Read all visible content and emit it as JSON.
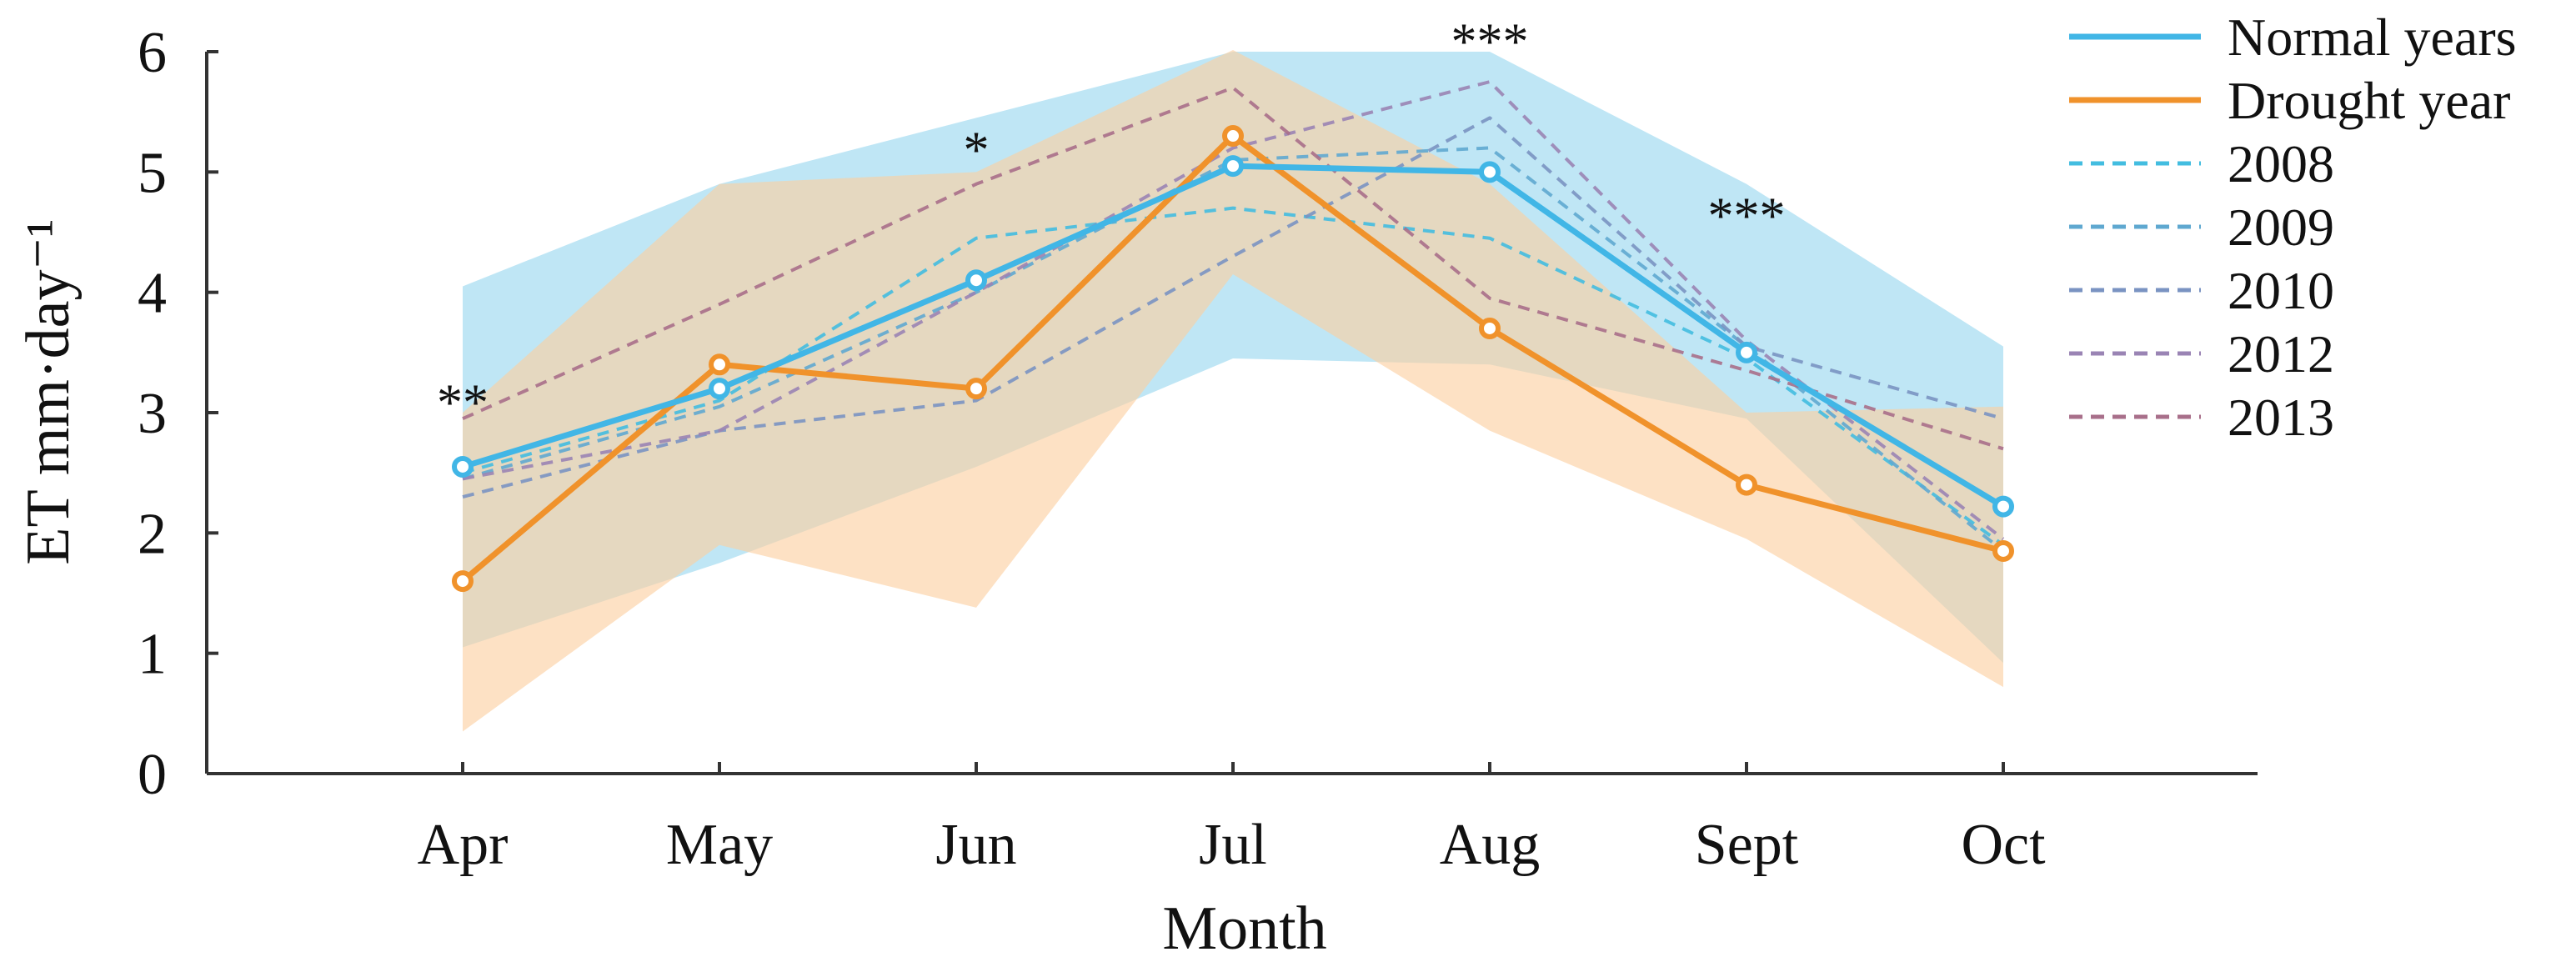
{
  "chart_data": {
    "type": "line",
    "title": "",
    "xlabel": "Month",
    "ylabel": "ET mm·day⁻¹",
    "categories": [
      "Apr",
      "May",
      "Jun",
      "Jul",
      "Aug",
      "Sept",
      "Oct"
    ],
    "ylim": [
      0,
      6
    ],
    "yticks": [
      0,
      1,
      2,
      3,
      4,
      5,
      6
    ],
    "legend_position": "top-right",
    "bands": [
      {
        "name": "Normal years range",
        "color": "#bfe6f5",
        "lower": [
          1.05,
          1.75,
          2.55,
          3.45,
          3.4,
          2.95,
          0.92
        ],
        "upper": [
          4.05,
          4.9,
          5.45,
          6.0,
          6.0,
          4.9,
          3.55
        ]
      },
      {
        "name": "Drought year range",
        "color": "#fbcfa0",
        "lower": [
          0.35,
          1.9,
          1.38,
          4.15,
          2.85,
          1.95,
          0.72
        ],
        "upper": [
          3.0,
          4.9,
          5.0,
          6.3,
          4.9,
          3.0,
          3.05
        ]
      }
    ],
    "series": [
      {
        "name": "Normal years",
        "color": "#41b6e6",
        "style": "solid",
        "markers": true,
        "values": [
          2.55,
          3.2,
          4.1,
          5.05,
          5.0,
          3.5,
          2.22
        ]
      },
      {
        "name": "Drought year",
        "color": "#f0922b",
        "style": "solid",
        "markers": true,
        "values": [
          1.6,
          3.4,
          3.2,
          5.3,
          3.7,
          2.4,
          1.85
        ]
      },
      {
        "name": "2008",
        "color": "#43bde0",
        "style": "dashed",
        "markers": false,
        "values": [
          2.5,
          3.1,
          4.45,
          4.7,
          4.45,
          3.45,
          1.9
        ]
      },
      {
        "name": "2009",
        "color": "#5fa8d0",
        "style": "dashed",
        "markers": false,
        "values": [
          2.45,
          3.05,
          4.0,
          5.1,
          5.2,
          3.55,
          1.85
        ]
      },
      {
        "name": "2010",
        "color": "#7a93c2",
        "style": "dashed",
        "markers": false,
        "values": [
          2.3,
          2.85,
          3.1,
          4.3,
          5.45,
          3.55,
          2.95
        ]
      },
      {
        "name": "2012",
        "color": "#9a84b4",
        "style": "dashed",
        "markers": false,
        "values": [
          2.45,
          2.85,
          4.0,
          5.2,
          5.75,
          3.6,
          1.95
        ]
      },
      {
        "name": "2013",
        "color": "#a86f8a",
        "style": "dashed",
        "markers": false,
        "values": [
          2.95,
          3.9,
          4.9,
          5.7,
          3.95,
          3.35,
          2.7
        ]
      }
    ],
    "annotations": [
      {
        "category": "Apr",
        "value": 3.15,
        "text": "**"
      },
      {
        "category": "Jun",
        "value": 5.25,
        "text": "*"
      },
      {
        "category": "Aug",
        "value": 6.15,
        "text": "***"
      },
      {
        "category": "Sept",
        "value": 4.7,
        "text": "***"
      }
    ]
  }
}
